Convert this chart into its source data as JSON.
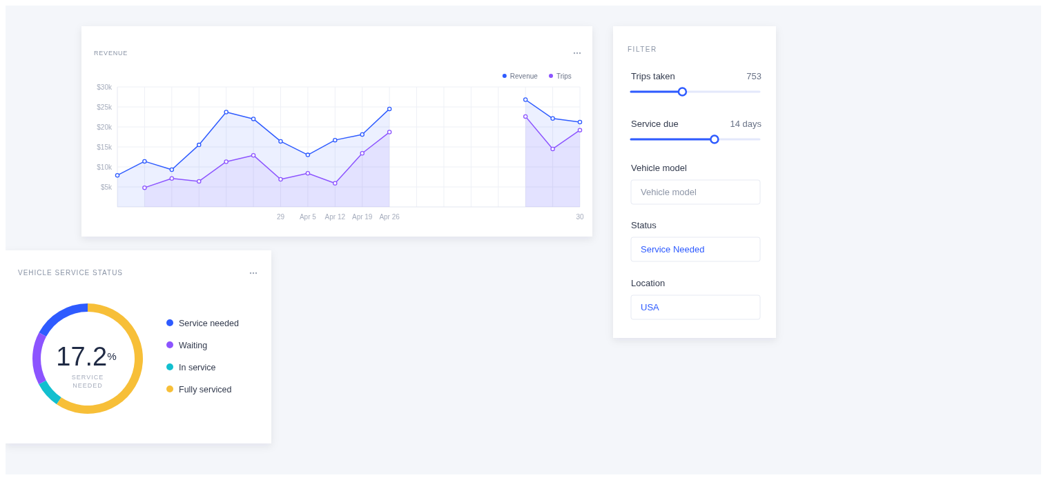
{
  "chart_data": [
    {
      "type": "area",
      "title": "REVENUE",
      "categories": [
        null,
        null,
        null,
        null,
        null,
        null,
        "29",
        "Apr 5",
        "Apr 12",
        "Apr 19",
        "Apr 26",
        null,
        null,
        null,
        null,
        null,
        null,
        "30"
      ],
      "series": [
        {
          "name": "Revenue",
          "color": "#2e5bff",
          "values": [
            7900,
            11400,
            9300,
            15500,
            23700,
            22000,
            16400,
            13000,
            16700,
            18100,
            24500,
            null,
            null,
            null,
            null,
            26800,
            22100,
            21200
          ]
        },
        {
          "name": "Trips",
          "color": "#8c54ff",
          "values": [
            null,
            4800,
            7100,
            6400,
            11300,
            12900,
            6900,
            8400,
            5900,
            13400,
            18700,
            null,
            null,
            null,
            null,
            22600,
            14500,
            19200
          ]
        }
      ],
      "ylim": [
        0,
        30000
      ],
      "yticks": [
        {
          "value": 5000,
          "label": "$5k"
        },
        {
          "value": 10000,
          "label": "$10k"
        },
        {
          "value": 15000,
          "label": "$15k"
        },
        {
          "value": 20000,
          "label": "$20k"
        },
        {
          "value": 25000,
          "label": "$25k"
        },
        {
          "value": 30000,
          "label": "$30k"
        }
      ],
      "grid": true,
      "legend": "top right",
      "marker": "circle"
    },
    {
      "type": "donut",
      "title": "VEHICLE SERVICE STATUS",
      "categories": [
        "Service needed",
        "Waiting",
        "In service",
        "Fully serviced"
      ],
      "values": [
        17.2,
        15.5,
        7.8,
        59.5
      ],
      "colors": [
        "#2e5bff",
        "#8c54ff",
        "#12bfcf",
        "#f7bf38"
      ],
      "annotations": [
        "17.2$^{%}$",
        "SERVICE NEEDED"
      ],
      "legend": "right"
    },
    {
      "type": "other",
      "title": "FILTER",
      "annotations": [
        "Trips taken",
        "753",
        "Service due",
        "14 days",
        "Vehicle model",
        "Vehicle model",
        "Status",
        "Service Needed",
        "Location",
        "USA"
      ]
    }
  ]
}
